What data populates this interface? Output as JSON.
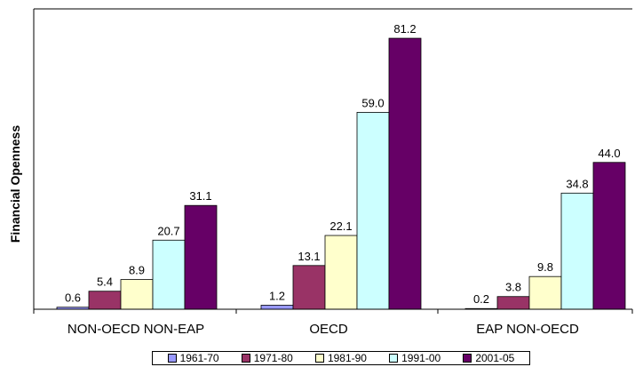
{
  "chart_data": {
    "type": "bar",
    "title": "",
    "ylabel": "Financial Openness",
    "xlabel": "",
    "ylim": [
      0,
      90
    ],
    "grid": false,
    "legend_position": "bottom",
    "categories": [
      "NON-OECD NON-EAP",
      "OECD",
      "EAP NON-OECD"
    ],
    "series": [
      {
        "name": "1961-70",
        "color": "#9999ff",
        "values": [
          0.6,
          1.2,
          0.2
        ],
        "labels": [
          "0.6",
          "1.2",
          "0.2"
        ]
      },
      {
        "name": "1971-80",
        "color": "#993366",
        "values": [
          5.4,
          13.1,
          3.8
        ],
        "labels": [
          "5.4",
          "13.1",
          "3.8"
        ]
      },
      {
        "name": "1981-90",
        "color": "#ffffcc",
        "values": [
          8.9,
          22.1,
          9.8
        ],
        "labels": [
          "8.9",
          "22.1",
          "9.8"
        ]
      },
      {
        "name": "1991-00",
        "color": "#ccffff",
        "values": [
          20.7,
          59.0,
          34.8
        ],
        "labels": [
          "20.7",
          "59.0",
          "34.8"
        ]
      },
      {
        "name": "2001-05",
        "color": "#660066",
        "values": [
          31.1,
          81.2,
          44.0
        ],
        "labels": [
          "31.1",
          "81.2",
          "44.0"
        ]
      }
    ]
  }
}
